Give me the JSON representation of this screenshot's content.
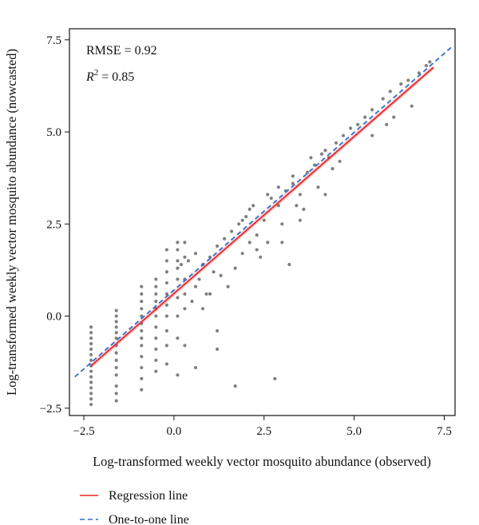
{
  "chart_data": {
    "type": "scatter",
    "xlabel": "Log-transformed weekly vector mosquito abundance (observed)",
    "ylabel": "Log-transformed weekly vector mosquito abundance (nowcasted)",
    "xlim": [
      -2.9,
      7.8
    ],
    "ylim": [
      -2.7,
      7.8
    ],
    "x_ticks": [
      -2.5,
      0.0,
      2.5,
      5.0,
      7.5
    ],
    "x_tick_labels": [
      "−2.5",
      "0.0",
      "2.5",
      "5.0",
      "7.5"
    ],
    "y_ticks": [
      -2.5,
      0.0,
      2.5,
      5.0,
      7.5
    ],
    "y_tick_labels": [
      "−2.5",
      "0.0",
      "2.5",
      "5.0",
      "7.5"
    ],
    "grid": false,
    "annotations": {
      "rmse": "RMSE = 0.92",
      "r2_prefix": "R",
      "r2_exp": "2",
      "r2_suffix": " = 0.85"
    },
    "regression_line": {
      "name": "Regression line",
      "color": "#e8262a",
      "x": [
        -2.3,
        7.2
      ],
      "y": [
        -1.35,
        6.75
      ]
    },
    "one_to_one_line": {
      "name": "One-to-one line",
      "color": "#2f6fce",
      "x": [
        -2.75,
        7.7
      ],
      "y": [
        -1.65,
        7.3
      ]
    },
    "points": {
      "color": "#555555",
      "values": [
        [
          -2.3,
          -2.4
        ],
        [
          -2.3,
          -2.25
        ],
        [
          -2.3,
          -2.1
        ],
        [
          -2.3,
          -1.95
        ],
        [
          -2.3,
          -1.8
        ],
        [
          -2.3,
          -1.65
        ],
        [
          -2.3,
          -1.5
        ],
        [
          -2.3,
          -1.35
        ],
        [
          -2.3,
          -1.2
        ],
        [
          -2.3,
          -1.05
        ],
        [
          -2.3,
          -0.9
        ],
        [
          -2.3,
          -0.75
        ],
        [
          -2.3,
          -0.6
        ],
        [
          -2.3,
          -0.45
        ],
        [
          -2.3,
          -0.3
        ],
        [
          -1.6,
          -2.3
        ],
        [
          -1.6,
          -2.1
        ],
        [
          -1.6,
          -1.9
        ],
        [
          -1.6,
          -1.6
        ],
        [
          -1.6,
          -1.4
        ],
        [
          -1.6,
          -1.2
        ],
        [
          -1.6,
          -1.0
        ],
        [
          -1.6,
          -0.8
        ],
        [
          -1.6,
          -0.6
        ],
        [
          -1.6,
          -0.45
        ],
        [
          -1.6,
          -0.3
        ],
        [
          -1.6,
          -0.15
        ],
        [
          -1.6,
          0.0
        ],
        [
          -1.6,
          0.15
        ],
        [
          -0.9,
          -2.0
        ],
        [
          -0.9,
          -1.7
        ],
        [
          -0.9,
          -1.4
        ],
        [
          -0.9,
          -1.1
        ],
        [
          -0.9,
          -0.8
        ],
        [
          -0.9,
          -0.6
        ],
        [
          -0.9,
          -0.4
        ],
        [
          -0.9,
          -0.2
        ],
        [
          -0.9,
          0.0
        ],
        [
          -0.9,
          0.2
        ],
        [
          -0.9,
          0.4
        ],
        [
          -0.9,
          0.6
        ],
        [
          -0.9,
          0.8
        ],
        [
          -0.5,
          -1.5
        ],
        [
          -0.5,
          -1.2
        ],
        [
          -0.5,
          -0.9
        ],
        [
          -0.5,
          -0.6
        ],
        [
          -0.5,
          -0.3
        ],
        [
          -0.5,
          0.0
        ],
        [
          -0.5,
          0.2
        ],
        [
          -0.5,
          0.4
        ],
        [
          -0.5,
          0.6
        ],
        [
          -0.5,
          0.8
        ],
        [
          -0.5,
          1.0
        ],
        [
          -0.2,
          -1.3
        ],
        [
          -0.2,
          -0.8
        ],
        [
          -0.2,
          -0.4
        ],
        [
          -0.2,
          0.0
        ],
        [
          -0.2,
          0.3
        ],
        [
          -0.2,
          0.6
        ],
        [
          -0.2,
          0.9
        ],
        [
          -0.2,
          1.2
        ],
        [
          -0.2,
          1.5
        ],
        [
          -0.2,
          1.8
        ],
        [
          0.1,
          -1.6
        ],
        [
          0.1,
          -0.6
        ],
        [
          0.1,
          0.0
        ],
        [
          0.1,
          0.5
        ],
        [
          0.1,
          1.0
        ],
        [
          0.1,
          1.3
        ],
        [
          0.1,
          1.5
        ],
        [
          0.1,
          1.8
        ],
        [
          0.1,
          2.0
        ],
        [
          0.3,
          -0.8
        ],
        [
          0.3,
          0.2
        ],
        [
          0.3,
          0.6
        ],
        [
          0.3,
          1.0
        ],
        [
          0.3,
          1.6
        ],
        [
          0.3,
          2.0
        ],
        [
          0.5,
          0.4
        ],
        [
          0.6,
          0.8
        ],
        [
          0.7,
          1.0
        ],
        [
          0.8,
          1.4
        ],
        [
          0.9,
          0.6
        ],
        [
          1.0,
          1.6
        ],
        [
          1.1,
          1.2
        ],
        [
          1.2,
          1.9
        ],
        [
          1.3,
          1.1
        ],
        [
          1.4,
          2.1
        ],
        [
          0.8,
          0.2
        ],
        [
          1.0,
          0.6
        ],
        [
          1.2,
          -0.4
        ],
        [
          1.5,
          0.8
        ],
        [
          1.7,
          1.3
        ],
        [
          1.9,
          1.7
        ],
        [
          2.1,
          2.0
        ],
        [
          2.3,
          2.2
        ],
        [
          2.4,
          1.6
        ],
        [
          1.6,
          2.3
        ],
        [
          1.8,
          2.5
        ],
        [
          2.0,
          2.7
        ],
        [
          2.2,
          3.0
        ],
        [
          2.5,
          2.6
        ],
        [
          2.7,
          3.2
        ],
        [
          2.9,
          3.0
        ],
        [
          3.1,
          3.4
        ],
        [
          3.3,
          3.6
        ],
        [
          3.5,
          3.3
        ],
        [
          3.7,
          3.9
        ],
        [
          3.9,
          4.1
        ],
        [
          4.1,
          4.4
        ],
        [
          4.3,
          4.3
        ],
        [
          4.5,
          4.7
        ],
        [
          4.7,
          4.9
        ],
        [
          4.9,
          5.1
        ],
        [
          5.1,
          5.2
        ],
        [
          5.3,
          5.4
        ],
        [
          5.5,
          5.6
        ],
        [
          5.8,
          5.9
        ],
        [
          6.0,
          6.1
        ],
        [
          6.3,
          6.3
        ],
        [
          6.5,
          6.4
        ],
        [
          6.8,
          6.6
        ],
        [
          7.0,
          6.8
        ],
        [
          7.1,
          6.9
        ],
        [
          4.2,
          3.3
        ],
        [
          3.6,
          2.9
        ],
        [
          3.0,
          2.5
        ],
        [
          3.2,
          1.4
        ],
        [
          2.8,
          -1.7
        ],
        [
          1.7,
          -1.9
        ],
        [
          1.2,
          -0.9
        ],
        [
          0.6,
          -1.4
        ],
        [
          3.0,
          2.0
        ],
        [
          3.5,
          2.6
        ],
        [
          4.0,
          3.5
        ],
        [
          4.6,
          4.2
        ],
        [
          5.5,
          4.9
        ],
        [
          6.1,
          5.4
        ],
        [
          6.6,
          5.7
        ],
        [
          5.9,
          5.2
        ],
        [
          4.4,
          4.0
        ],
        [
          3.4,
          3.0
        ],
        [
          2.6,
          2.0
        ],
        [
          2.3,
          1.8
        ],
        [
          1.9,
          2.6
        ],
        [
          2.1,
          2.9
        ],
        [
          2.6,
          3.3
        ],
        [
          2.9,
          3.5
        ],
        [
          3.3,
          3.8
        ],
        [
          3.8,
          4.3
        ],
        [
          4.2,
          4.5
        ],
        [
          0.4,
          1.5
        ],
        [
          0.6,
          1.7
        ],
        [
          0.2,
          1.4
        ]
      ]
    }
  },
  "legend": {
    "items": [
      {
        "label": "Regression line",
        "color": "#e8262a",
        "style": "solid"
      },
      {
        "label": "One-to-one line",
        "color": "#2f6fce",
        "style": "dashed"
      }
    ]
  }
}
